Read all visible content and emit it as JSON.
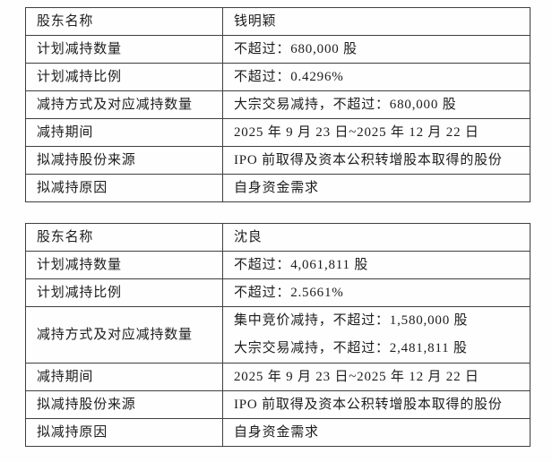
{
  "page": {
    "background": "#fefefe",
    "border_color": "#3f3f3f",
    "text_color": "#1c1c1c"
  },
  "tables": [
    {
      "shareholder": "钱明颖",
      "rows": [
        {
          "label": "股东名称",
          "lines": [
            "钱明颖"
          ]
        },
        {
          "label": "计划减持数量",
          "lines": [
            "不超过：680,000 股"
          ]
        },
        {
          "label": "计划减持比例",
          "lines": [
            "不超过：0.4296%"
          ]
        },
        {
          "label": "减持方式及对应减持数量",
          "lines": [
            "大宗交易减持，不超过：680,000 股"
          ]
        },
        {
          "label": "减持期间",
          "lines": [
            "2025 年 9 月 23 日~2025 年 12 月 22 日"
          ]
        },
        {
          "label": "拟减持股份来源",
          "lines": [
            "IPO 前取得及资本公积转增股本取得的股份"
          ]
        },
        {
          "label": "拟减持原因",
          "lines": [
            "自身资金需求"
          ]
        }
      ]
    },
    {
      "shareholder": "沈良",
      "rows": [
        {
          "label": "股东名称",
          "lines": [
            "沈良"
          ]
        },
        {
          "label": "计划减持数量",
          "lines": [
            "不超过：4,061,811 股"
          ]
        },
        {
          "label": "计划减持比例",
          "lines": [
            "不超过：2.5661%"
          ]
        },
        {
          "label": "减持方式及对应减持数量",
          "lines": [
            "集中竞价减持，不超过：1,580,000 股",
            "大宗交易减持，不超过：2,481,811 股"
          ]
        },
        {
          "label": "减持期间",
          "lines": [
            "2025 年 9 月 23 日~2025 年 12 月 22 日"
          ]
        },
        {
          "label": "拟减持股份来源",
          "lines": [
            "IPO 前取得及资本公积转增股本取得的股份"
          ]
        },
        {
          "label": "拟减持原因",
          "lines": [
            "自身资金需求"
          ]
        }
      ]
    }
  ]
}
